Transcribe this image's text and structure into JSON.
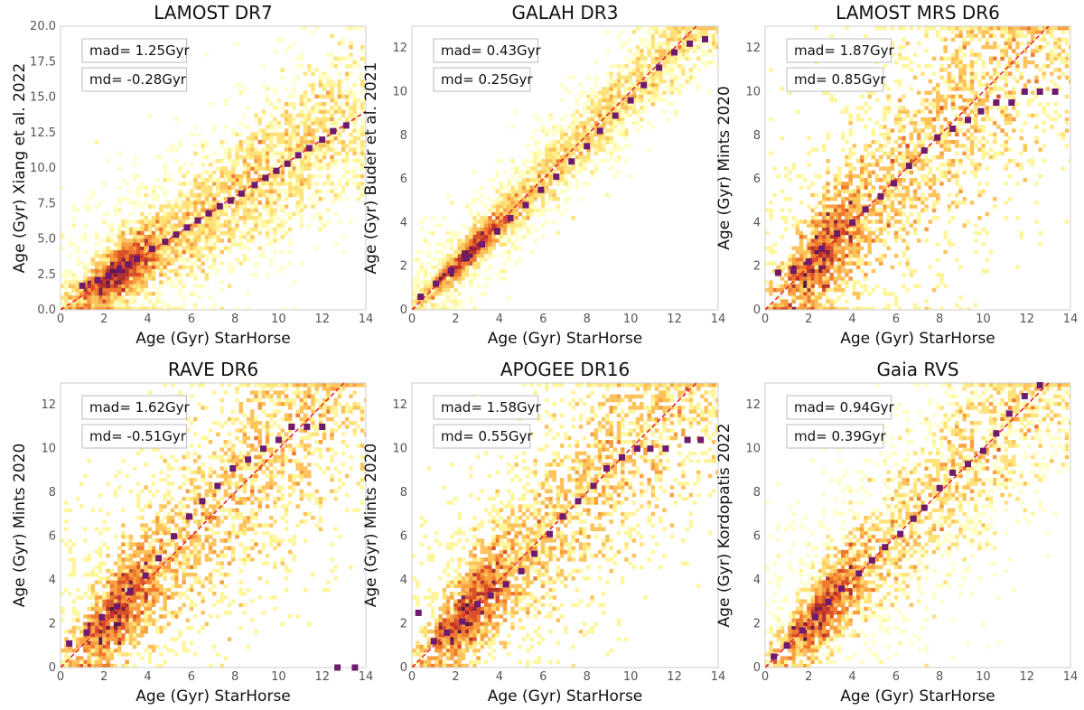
{
  "chart_data": [
    {
      "type": "scatter",
      "title": "LAMOST DR7",
      "xlabel": "Age (Gyr) StarHorse",
      "ylabel": "Age (Gyr) Xiang et al. 2022",
      "xlim": [
        0,
        14
      ],
      "ylim": [
        0,
        20
      ],
      "xticks": [
        0,
        2,
        4,
        6,
        8,
        10,
        12,
        14
      ],
      "yticks": [
        0.0,
        2.5,
        5.0,
        7.5,
        10.0,
        12.5,
        15.0,
        17.5,
        20.0
      ],
      "ytick_labels": [
        "0.0",
        "2.5",
        "5.0",
        "7.5",
        "10.0",
        "12.5",
        "15.0",
        "17.5",
        "20.0"
      ],
      "stats": [
        "mad= 1.25Gyr",
        "md= -0.28Gyr"
      ],
      "spread": 1.6,
      "median_points": {
        "x": [
          1.0,
          1.7,
          2.2,
          2.7,
          3.1,
          3.5,
          4.2,
          4.8,
          5.3,
          5.8,
          6.3,
          6.8,
          7.3,
          7.8,
          8.3,
          8.9,
          9.4,
          9.9,
          10.4,
          10.9,
          11.4,
          12.0,
          12.5,
          13.1
        ],
        "y": [
          1.7,
          2.1,
          2.4,
          2.8,
          3.2,
          3.6,
          4.3,
          4.8,
          5.3,
          5.8,
          6.3,
          6.8,
          7.3,
          7.7,
          8.2,
          8.8,
          9.3,
          9.8,
          10.3,
          10.9,
          11.4,
          12.0,
          12.6,
          13.0
        ]
      }
    },
    {
      "type": "scatter",
      "title": "GALAH DR3",
      "xlabel": "Age (Gyr) StarHorse",
      "ylabel": "Age (Gyr) Buder et al. 2021",
      "xlim": [
        0,
        14
      ],
      "ylim": [
        0,
        13
      ],
      "xticks": [
        0,
        2,
        4,
        6,
        8,
        10,
        12,
        14
      ],
      "yticks": [
        0,
        2,
        4,
        6,
        8,
        10,
        12
      ],
      "stats": [
        "mad= 0.43Gyr",
        "md= 0.25Gyr"
      ],
      "spread": 0.6,
      "median_points": {
        "x": [
          0.4,
          1.1,
          1.8,
          2.5,
          3.2,
          3.9,
          4.5,
          5.2,
          5.9,
          6.6,
          7.3,
          8.0,
          8.6,
          9.3,
          10.0,
          10.6,
          11.3,
          12.0,
          12.7,
          13.4
        ],
        "y": [
          0.6,
          1.2,
          1.8,
          2.4,
          3.0,
          3.6,
          4.2,
          4.8,
          5.5,
          6.1,
          6.8,
          7.5,
          8.2,
          8.9,
          9.6,
          10.3,
          11.1,
          11.8,
          12.2,
          12.4
        ]
      }
    },
    {
      "type": "scatter",
      "title": "LAMOST MRS DR6",
      "xlabel": "Age (Gyr) StarHorse",
      "ylabel": "Age (Gyr) Mints 2020",
      "xlim": [
        0,
        14
      ],
      "ylim": [
        0,
        13
      ],
      "xticks": [
        0,
        2,
        4,
        6,
        8,
        10,
        12,
        14
      ],
      "yticks": [
        0,
        2,
        4,
        6,
        8,
        10,
        12
      ],
      "stats": [
        "mad= 1.87Gyr",
        "md= 0.85Gyr"
      ],
      "spread": 1.8,
      "median_points": {
        "x": [
          0.6,
          1.3,
          2.0,
          2.6,
          3.3,
          4.0,
          4.6,
          5.3,
          5.9,
          6.6,
          7.3,
          7.9,
          8.6,
          9.3,
          9.9,
          10.6,
          11.3,
          11.9,
          12.6,
          13.3
        ],
        "y": [
          1.7,
          1.8,
          2.2,
          2.8,
          3.5,
          4.0,
          4.6,
          5.2,
          5.8,
          6.6,
          7.3,
          7.9,
          8.3,
          8.7,
          9.1,
          9.5,
          9.5,
          10.0,
          10.0,
          10.0
        ]
      }
    },
    {
      "type": "scatter",
      "title": "RAVE DR6",
      "xlabel": "Age (Gyr) StarHorse",
      "ylabel": "Age (Gyr) Mints 2020",
      "xlim": [
        0,
        14
      ],
      "ylim": [
        0,
        13
      ],
      "xticks": [
        0,
        2,
        4,
        6,
        8,
        10,
        12,
        14
      ],
      "yticks": [
        0,
        2,
        4,
        6,
        8,
        10,
        12
      ],
      "stats": [
        "mad= 1.62Gyr",
        "md= -0.51Gyr"
      ],
      "spread": 1.7,
      "median_points": {
        "x": [
          0.4,
          1.2,
          1.9,
          2.6,
          3.2,
          3.9,
          4.5,
          5.2,
          5.9,
          6.5,
          7.2,
          7.9,
          8.6,
          9.3,
          10.0,
          10.6,
          11.3,
          12.0,
          12.7,
          13.5
        ],
        "y": [
          1.1,
          1.6,
          2.3,
          2.8,
          3.5,
          4.2,
          5.0,
          6.0,
          6.9,
          7.6,
          8.3,
          9.1,
          9.5,
          10.0,
          10.4,
          11.0,
          11.0,
          11.0,
          0.0,
          0.0
        ]
      }
    },
    {
      "type": "scatter",
      "title": "APOGEE DR16",
      "xlabel": "Age (Gyr) StarHorse",
      "ylabel": "Age (Gyr) Mints 2020",
      "xlim": [
        0,
        14
      ],
      "ylim": [
        0,
        13
      ],
      "xticks": [
        0,
        2,
        4,
        6,
        8,
        10,
        12,
        14
      ],
      "yticks": [
        0,
        2,
        4,
        6,
        8,
        10,
        12
      ],
      "stats": [
        "mad= 1.58Gyr",
        "md= 0.55Gyr"
      ],
      "spread": 1.6,
      "median_points": {
        "x": [
          0.3,
          1.0,
          1.6,
          2.3,
          3.0,
          3.6,
          4.3,
          5.0,
          5.6,
          6.3,
          6.9,
          7.6,
          8.3,
          8.9,
          9.6,
          10.3,
          10.9,
          11.6,
          12.6,
          13.2
        ],
        "y": [
          2.5,
          1.2,
          1.6,
          2.1,
          2.9,
          3.3,
          3.8,
          4.4,
          5.2,
          6.1,
          6.9,
          7.6,
          8.3,
          9.1,
          9.6,
          10.0,
          10.0,
          10.0,
          10.4,
          10.4
        ]
      }
    },
    {
      "type": "scatter",
      "title": "Gaia RVS",
      "xlabel": "Age (Gyr) StarHorse",
      "ylabel": "Age (Gyr) Kordopatis 2022",
      "xlim": [
        0,
        14
      ],
      "ylim": [
        0,
        13
      ],
      "xticks": [
        0,
        2,
        4,
        6,
        8,
        10,
        12,
        14
      ],
      "yticks": [
        0,
        2,
        4,
        6,
        8,
        10,
        12
      ],
      "stats": [
        "mad= 0.94Gyr",
        "md= 0.39Gyr"
      ],
      "spread": 1.4,
      "median_points": {
        "x": [
          0.4,
          1.0,
          1.7,
          2.3,
          2.9,
          3.5,
          4.3,
          4.9,
          5.5,
          6.2,
          6.8,
          7.3,
          8.0,
          8.6,
          9.3,
          10.0,
          10.6,
          11.2,
          11.9,
          12.6
        ],
        "y": [
          0.5,
          1.0,
          1.7,
          2.3,
          3.0,
          3.6,
          4.3,
          4.9,
          5.5,
          6.1,
          6.8,
          7.3,
          8.2,
          8.9,
          9.3,
          9.9,
          10.7,
          11.6,
          12.4,
          12.9
        ]
      }
    }
  ],
  "colors": {
    "background": "#ffffff",
    "frame": "#cccccc",
    "median_marker": "#6e1a6e",
    "one_to_one_line": "#e8252d",
    "density_low": "#ffffb0",
    "density_mid": "#f5a623",
    "density_high": "#c0392b",
    "density_peak": "#5e1a5e"
  }
}
